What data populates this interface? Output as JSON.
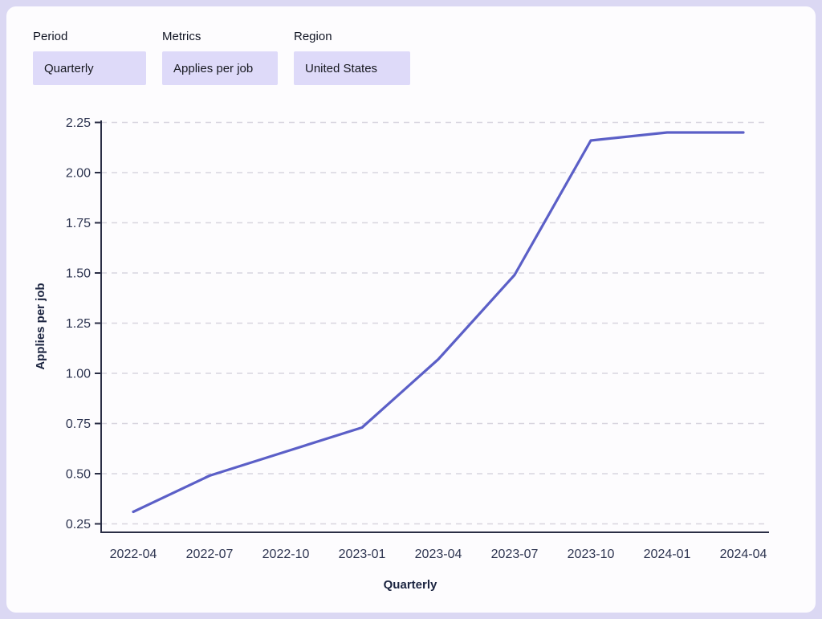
{
  "filters": [
    {
      "id": "period",
      "label": "Period",
      "value": "Quarterly"
    },
    {
      "id": "metrics",
      "label": "Metrics",
      "value": "Applies per job"
    },
    {
      "id": "region",
      "label": "Region",
      "value": "United States"
    }
  ],
  "chart_data": {
    "type": "line",
    "x": [
      "2022-04",
      "2022-07",
      "2022-10",
      "2023-01",
      "2023-04",
      "2023-07",
      "2023-10",
      "2024-01",
      "2024-04"
    ],
    "series": [
      {
        "name": "Applies per job",
        "values": [
          0.31,
          0.49,
          0.61,
          0.73,
          1.07,
          1.49,
          2.16,
          2.2,
          2.2
        ]
      }
    ],
    "xlabel": "Quarterly",
    "ylabel": "Applies per job",
    "ylim": [
      0.25,
      2.25
    ],
    "ytick_step": 0.25,
    "grid": "horizontal-dashed",
    "legend": "none"
  },
  "colors": {
    "page_bg": "#dbd8f3",
    "card_bg": "#fdfcfe",
    "select_bg": "#dedaf9",
    "line": "#5b5fc7",
    "grid": "#d8d5df",
    "axis": "#2a2e45",
    "tick_text": "#2d3450",
    "axis_title_text": "#1b2440",
    "label_text": "#101423"
  }
}
